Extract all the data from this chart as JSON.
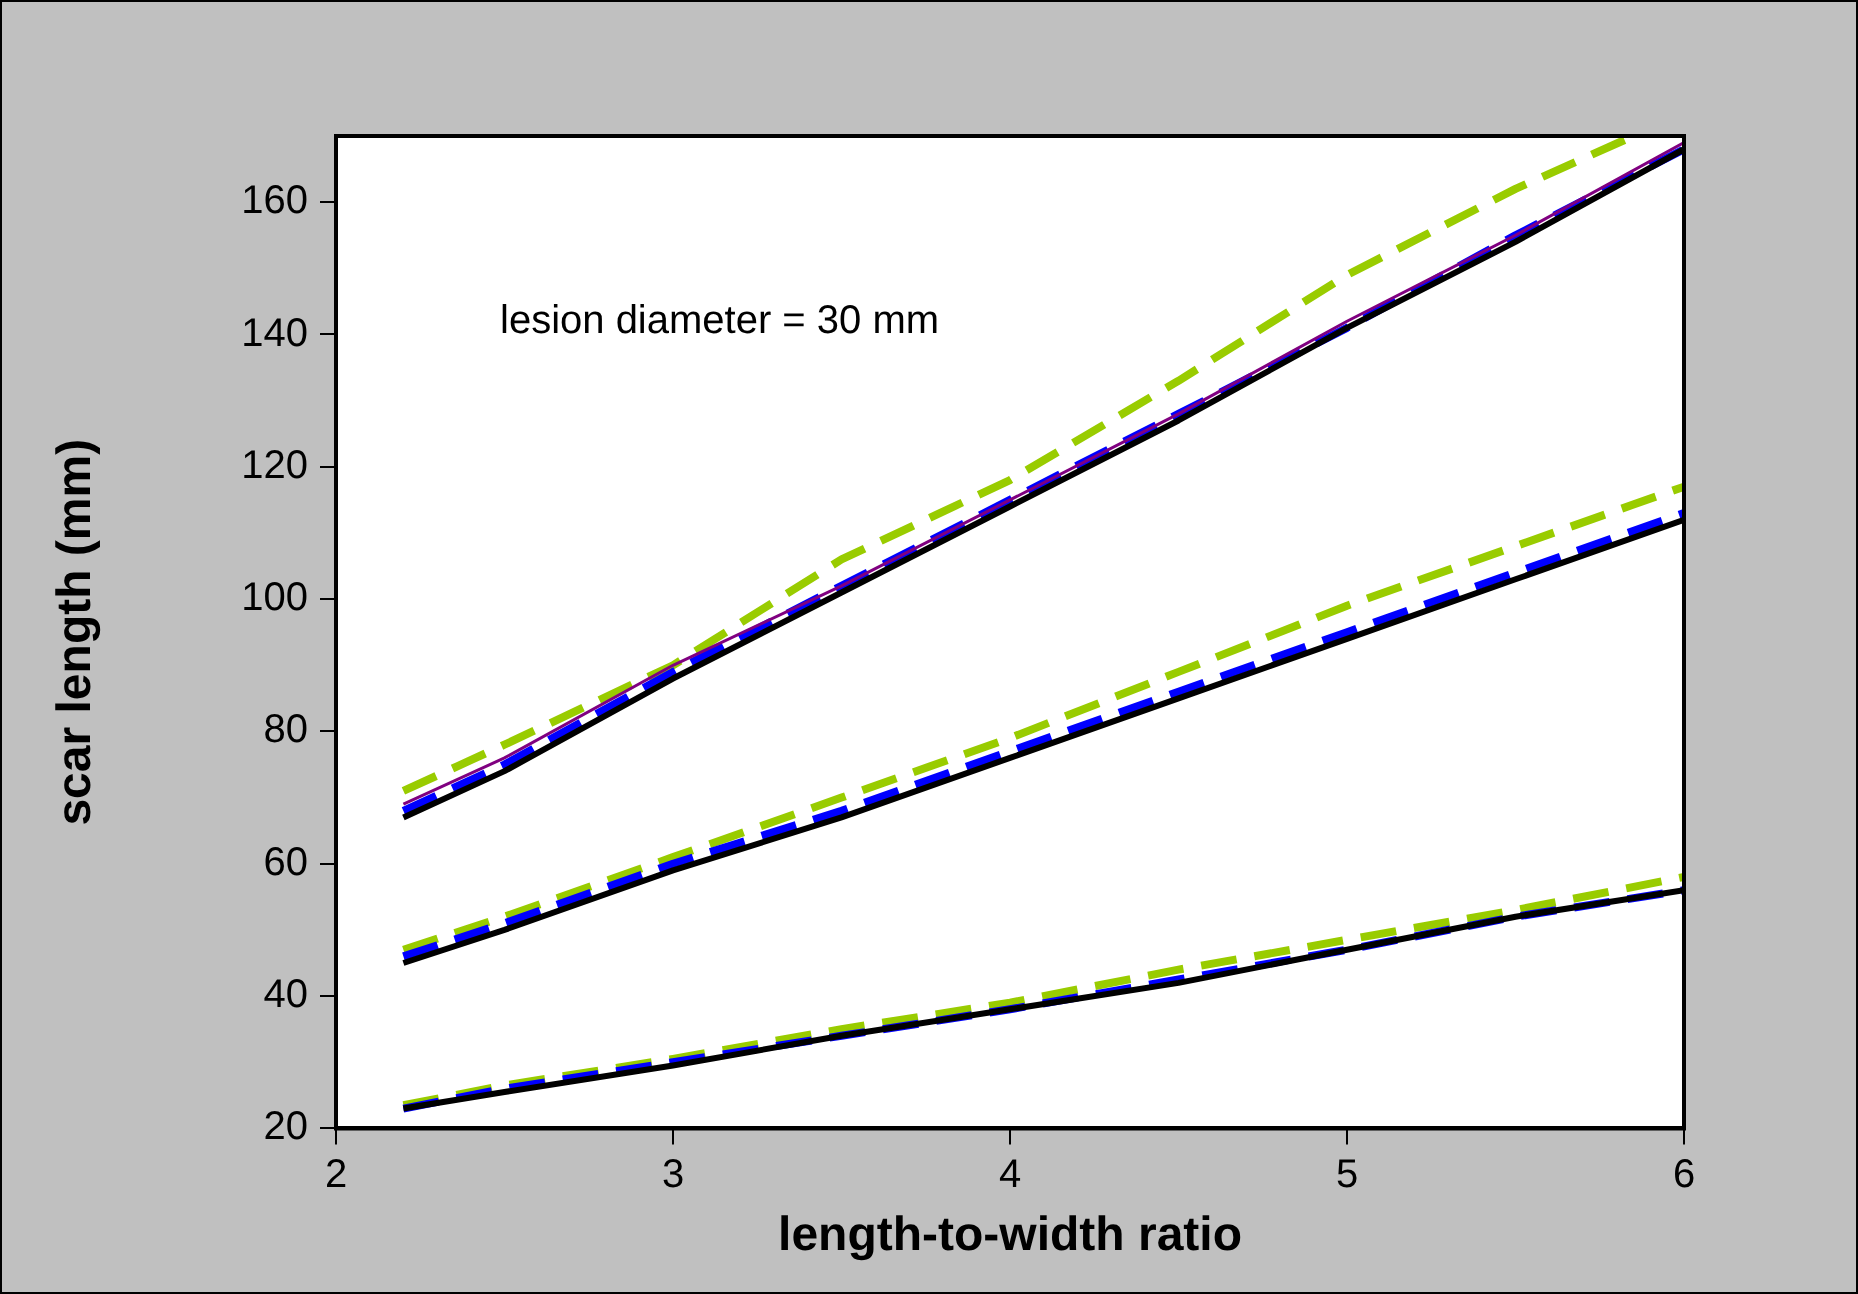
{
  "chart_data": {
    "type": "line",
    "xlabel": "length-to-width ratio",
    "ylabel": "scar length (mm)",
    "annotations": [
      "lesion diameter = 30 mm"
    ],
    "xlim": [
      2,
      6
    ],
    "xticks": [
      2,
      3,
      4,
      5,
      6
    ],
    "ylim": [
      20,
      170
    ],
    "yticks": [
      20,
      40,
      60,
      80,
      100,
      120,
      140,
      160
    ],
    "grid": false,
    "legend": false,
    "marker": "none",
    "series": [
      {
        "color": "#000000",
        "line_style": "solid",
        "x": [
          2.2,
          2.5,
          3,
          3.5,
          4,
          4.5,
          5,
          5.5,
          6
        ],
        "values": [
          67,
          74,
          88,
          101,
          114,
          127,
          141,
          154,
          168
        ]
      },
      {
        "color": "#800080",
        "line_style": "solid",
        "x": [
          2.2,
          2.5,
          3,
          3.5,
          4,
          4.5,
          5,
          5.5,
          6
        ],
        "values": [
          69,
          76,
          90,
          102,
          115,
          128,
          142,
          155,
          169
        ]
      },
      {
        "color": "#0000ff",
        "line_style": "dashed",
        "x": [
          2.2,
          2.5,
          3,
          3.5,
          4,
          4.5,
          5,
          5.5,
          6
        ],
        "values": [
          68,
          75,
          89,
          102,
          115,
          128,
          141,
          155,
          168
        ]
      },
      {
        "color": "#99cc00",
        "line_style": "dashed",
        "x": [
          2.2,
          2.5,
          3,
          3.5,
          4,
          4.5,
          5,
          5.5,
          5.85
        ],
        "values": [
          71,
          78,
          90,
          106,
          118,
          133,
          149,
          162,
          170
        ]
      },
      {
        "color": "#000000",
        "line_style": "solid",
        "x": [
          2.2,
          2.5,
          3,
          3.5,
          4,
          4.5,
          5,
          5.5,
          6
        ],
        "values": [
          45,
          50,
          59,
          67,
          76,
          85,
          94,
          103,
          112
        ]
      },
      {
        "color": "#0000ff",
        "line_style": "dashed",
        "x": [
          2.2,
          2.5,
          3,
          3.5,
          4,
          4.5,
          5,
          5.5,
          6
        ],
        "values": [
          46,
          51,
          60,
          68,
          77,
          86,
          95,
          104,
          113
        ]
      },
      {
        "color": "#99cc00",
        "line_style": "dashed",
        "x": [
          2.2,
          2.5,
          3,
          3.5,
          4,
          4.5,
          5,
          5.5,
          6
        ],
        "values": [
          47,
          52,
          61,
          70,
          79,
          89,
          99,
          108,
          117
        ]
      },
      {
        "color": "#000000",
        "line_style": "solid",
        "x": [
          2.2,
          2.5,
          3,
          3.5,
          4,
          4.5,
          5,
          5.5,
          6
        ],
        "values": [
          23,
          25.5,
          29.5,
          34,
          38,
          42,
          47,
          52,
          56
        ]
      },
      {
        "color": "#0000ff",
        "line_style": "dashed",
        "x": [
          2.2,
          2.5,
          3,
          3.5,
          4,
          4.5,
          5,
          5.5,
          6
        ],
        "values": [
          23,
          26,
          30,
          34,
          38,
          42.5,
          47,
          52,
          56
        ]
      },
      {
        "color": "#99cc00",
        "line_style": "dashed",
        "x": [
          2.2,
          2.5,
          3,
          3.5,
          4,
          4.5,
          5,
          5.5,
          6
        ],
        "values": [
          23.5,
          26.5,
          30.5,
          35,
          39,
          44,
          48.5,
          53,
          58
        ]
      }
    ]
  }
}
